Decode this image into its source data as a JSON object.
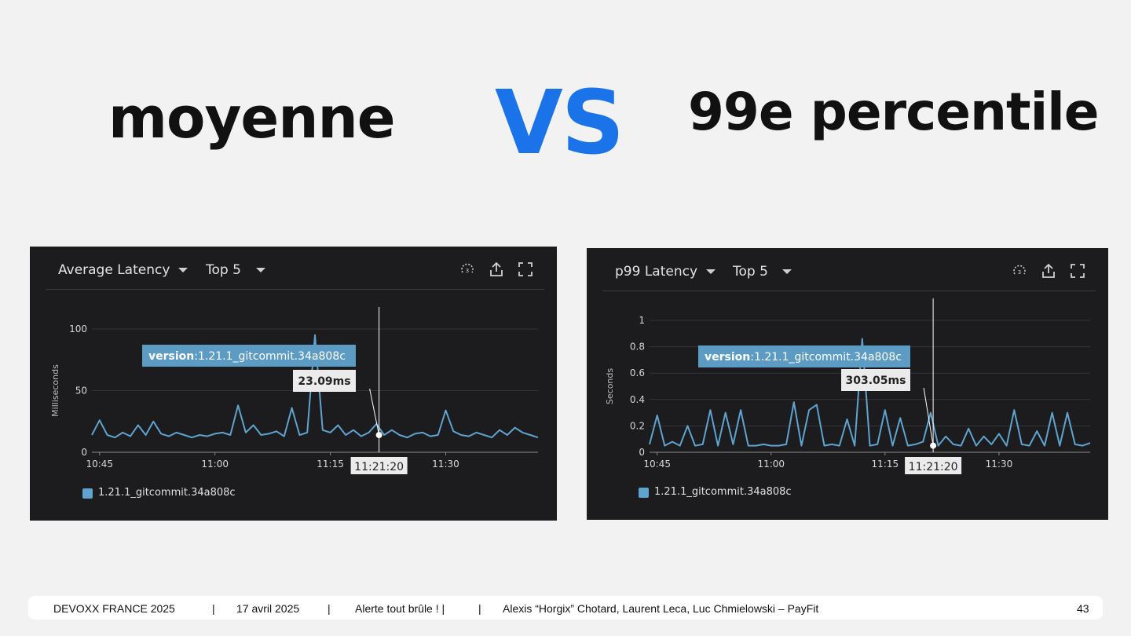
{
  "slide": {
    "title_left": "moyenne",
    "vs": "VS",
    "title_right": "99e percentile"
  },
  "panels": [
    {
      "metric_label": "Average Latency",
      "top_label": "Top 5",
      "icons": [
        "metrics-icon",
        "export-icon",
        "fullscreen-icon"
      ],
      "legend": "1.21.1_gitcommit.34a808c",
      "series_color": "#5fa3cf",
      "tooltip": {
        "version_key": "version",
        "version_value": ":1.21.1_gitcommit.34a808c",
        "value": "23.09ms",
        "time": "11:21:20"
      }
    },
    {
      "metric_label": "p99 Latency",
      "top_label": "Top 5",
      "icons": [
        "metrics-icon",
        "export-icon",
        "fullscreen-icon"
      ],
      "legend": "1.21.1_gitcommit.34a808c",
      "series_color": "#5fa3cf",
      "tooltip": {
        "version_key": "version",
        "version_value": ":1.21.1_gitcommit.34a808c",
        "value": "303.05ms",
        "time": "11:21:20"
      }
    }
  ],
  "chart_data": [
    {
      "type": "line",
      "title": "Average Latency",
      "ylabel": "Milliseconds",
      "xlabel": "",
      "x_ticks": [
        "10:45",
        "11:00",
        "11:15",
        "11:30"
      ],
      "x_range": [
        "10:44",
        "11:42"
      ],
      "y_ticks": [
        0,
        50,
        100
      ],
      "ylim": [
        0,
        100
      ],
      "grid": true,
      "legend_position": "bottom-left",
      "series": [
        {
          "name": "1.21.1_gitcommit.34a808c",
          "x": [
            "10:44",
            "10:45",
            "10:46",
            "10:47",
            "10:48",
            "10:49",
            "10:50",
            "10:51",
            "10:52",
            "10:53",
            "10:54",
            "10:55",
            "10:56",
            "10:57",
            "10:58",
            "10:59",
            "11:00",
            "11:01",
            "11:02",
            "11:03",
            "11:04",
            "11:05",
            "11:06",
            "11:07",
            "11:08",
            "11:09",
            "11:10",
            "11:11",
            "11:12",
            "11:13",
            "11:14",
            "11:15",
            "11:16",
            "11:17",
            "11:18",
            "11:19",
            "11:20",
            "11:21",
            "11:22",
            "11:23",
            "11:24",
            "11:25",
            "11:26",
            "11:27",
            "11:28",
            "11:29",
            "11:30",
            "11:31",
            "11:32",
            "11:33",
            "11:34",
            "11:35",
            "11:36",
            "11:37",
            "11:38",
            "11:39",
            "11:40",
            "11:41",
            "11:42"
          ],
          "values": [
            14,
            26,
            14,
            12,
            16,
            13,
            22,
            14,
            25,
            15,
            13,
            16,
            14,
            12,
            14,
            13,
            15,
            16,
            14,
            38,
            16,
            22,
            14,
            15,
            17,
            13,
            36,
            14,
            16,
            95,
            18,
            16,
            22,
            14,
            18,
            13,
            16,
            23,
            14,
            18,
            14,
            12,
            15,
            16,
            13,
            14,
            34,
            17,
            14,
            13,
            16,
            14,
            12,
            18,
            14,
            20,
            16,
            14,
            12
          ]
        }
      ],
      "annotation": {
        "x": "11:21:20",
        "value": "23.09ms"
      }
    },
    {
      "type": "line",
      "title": "p99 Latency",
      "ylabel": "Seconds",
      "xlabel": "",
      "x_ticks": [
        "10:45",
        "11:00",
        "11:15",
        "11:30"
      ],
      "x_range": [
        "10:44",
        "11:42"
      ],
      "y_ticks": [
        0,
        0.2,
        0.4,
        0.6,
        0.8,
        1
      ],
      "ylim": [
        0,
        1
      ],
      "grid": true,
      "legend_position": "bottom-left",
      "series": [
        {
          "name": "1.21.1_gitcommit.34a808c",
          "x": [
            "10:44",
            "10:45",
            "10:46",
            "10:47",
            "10:48",
            "10:49",
            "10:50",
            "10:51",
            "10:52",
            "10:53",
            "10:54",
            "10:55",
            "10:56",
            "10:57",
            "10:58",
            "10:59",
            "11:00",
            "11:01",
            "11:02",
            "11:03",
            "11:04",
            "11:05",
            "11:06",
            "11:07",
            "11:08",
            "11:09",
            "11:10",
            "11:11",
            "11:12",
            "11:13",
            "11:14",
            "11:15",
            "11:16",
            "11:17",
            "11:18",
            "11:19",
            "11:20",
            "11:21",
            "11:22",
            "11:23",
            "11:24",
            "11:25",
            "11:26",
            "11:27",
            "11:28",
            "11:29",
            "11:30",
            "11:31",
            "11:32",
            "11:33",
            "11:34",
            "11:35",
            "11:36",
            "11:37",
            "11:38",
            "11:39",
            "11:40",
            "11:41",
            "11:42"
          ],
          "values": [
            0.06,
            0.28,
            0.05,
            0.08,
            0.05,
            0.2,
            0.05,
            0.06,
            0.32,
            0.05,
            0.3,
            0.06,
            0.32,
            0.05,
            0.05,
            0.06,
            0.05,
            0.05,
            0.06,
            0.38,
            0.05,
            0.32,
            0.36,
            0.05,
            0.06,
            0.05,
            0.25,
            0.05,
            0.86,
            0.05,
            0.06,
            0.32,
            0.05,
            0.26,
            0.05,
            0.06,
            0.08,
            0.3,
            0.05,
            0.12,
            0.06,
            0.05,
            0.18,
            0.05,
            0.12,
            0.06,
            0.14,
            0.05,
            0.32,
            0.06,
            0.05,
            0.16,
            0.05,
            0.3,
            0.05,
            0.3,
            0.06,
            0.05,
            0.07
          ]
        }
      ],
      "annotation": {
        "x": "11:21:20",
        "value": "303.05ms"
      }
    }
  ],
  "footer": {
    "event": "DEVOXX FRANCE 2025",
    "sep1": "|",
    "date": "17 avril 2025",
    "sep2": "|",
    "talk": "Alerte tout brûle ! |",
    "sep3": "|",
    "authors": "Alexis “Horgix” Chotard, Laurent Leca, Luc Chmielowski – PayFit",
    "page": "43"
  }
}
